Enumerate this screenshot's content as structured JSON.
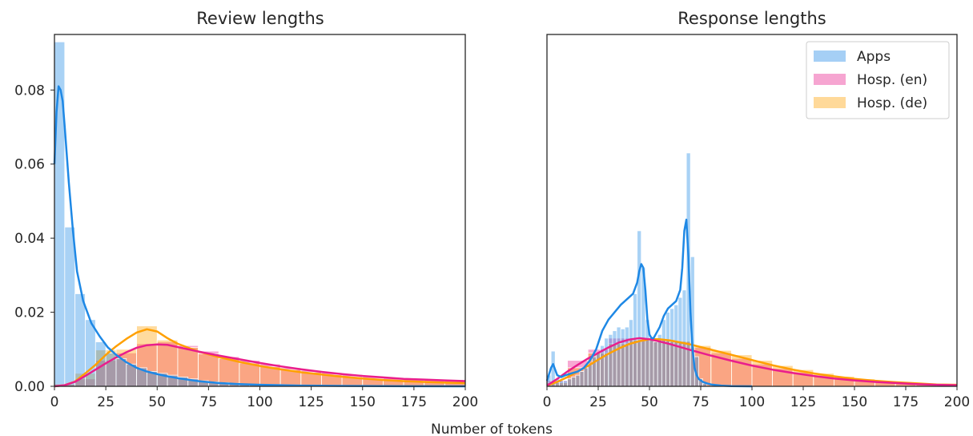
{
  "colors": {
    "apps": "#1e88e5",
    "hosp_en": "#e91e8c",
    "hosp_de": "#ffa000",
    "frame": "#262626"
  },
  "shared": {
    "xlabel": "Number of tokens"
  },
  "chart_data": [
    {
      "type": "histogram",
      "title": "Review lengths",
      "xlim": [
        0,
        200
      ],
      "ylim": [
        0,
        0.095
      ],
      "xticks": [
        0,
        25,
        50,
        75,
        100,
        125,
        150,
        175,
        200
      ],
      "yticks": [
        0.0,
        0.02,
        0.04,
        0.06,
        0.08
      ],
      "yticklabels": [
        "0.00",
        "0.02",
        "0.04",
        "0.06",
        "0.08"
      ],
      "grid": false,
      "series": [
        {
          "key": "apps",
          "bins": {
            "edges": [
              0,
              5,
              10,
              15,
              20,
              25,
              30,
              35,
              40,
              45,
              50,
              55,
              60,
              65,
              70,
              75,
              80,
              85,
              90,
              95,
              100
            ],
            "density": [
              0.093,
              0.043,
              0.025,
              0.018,
              0.012,
              0.009,
              0.0075,
              0.006,
              0.005,
              0.004,
              0.0035,
              0.003,
              0.0025,
              0.002,
              0.0015,
              0.0012,
              0.001,
              0.0008,
              0.0006,
              0.0004
            ]
          },
          "kde": {
            "x": [
              0,
              1,
              2,
              3,
              4,
              5,
              7,
              9,
              11,
              14,
              18,
              22,
              26,
              30,
              35,
              40,
              45,
              50,
              55,
              60,
              65,
              70,
              80,
              90,
              100,
              110,
              120,
              140,
              160,
              180,
              200
            ],
            "y": [
              0.06,
              0.074,
              0.081,
              0.08,
              0.077,
              0.07,
              0.055,
              0.042,
              0.031,
              0.023,
              0.017,
              0.0135,
              0.0105,
              0.0085,
              0.0065,
              0.005,
              0.004,
              0.0033,
              0.0027,
              0.0022,
              0.0018,
              0.0014,
              0.0009,
              0.0006,
              0.0004,
              0.0003,
              0.0002,
              0.0001,
              5e-05,
              2e-05,
              0
            ]
          }
        },
        {
          "key": "hosp_en",
          "bins": {
            "edges": [
              0,
              10,
              20,
              30,
              40,
              50,
              60,
              70,
              80,
              90,
              100,
              110,
              120,
              130,
              140,
              150,
              160,
              170,
              180,
              190,
              200
            ],
            "density": [
              0.0005,
              0.002,
              0.007,
              0.009,
              0.0115,
              0.012,
              0.011,
              0.0095,
              0.008,
              0.007,
              0.006,
              0.005,
              0.0043,
              0.0037,
              0.0032,
              0.0027,
              0.0023,
              0.002,
              0.0017,
              0.0015
            ]
          },
          "kde": {
            "x": [
              0,
              5,
              10,
              15,
              20,
              25,
              30,
              35,
              40,
              45,
              50,
              55,
              60,
              70,
              80,
              90,
              100,
              110,
              120,
              130,
              140,
              150,
              160,
              170,
              180,
              190,
              200
            ],
            "y": [
              0,
              0.0003,
              0.0012,
              0.0028,
              0.0045,
              0.0062,
              0.0078,
              0.0092,
              0.0104,
              0.0111,
              0.0113,
              0.0112,
              0.0106,
              0.0094,
              0.0083,
              0.0073,
              0.0063,
              0.0054,
              0.0046,
              0.0039,
              0.0033,
              0.0028,
              0.0024,
              0.002,
              0.0018,
              0.0016,
              0.0014
            ]
          }
        },
        {
          "key": "hosp_de",
          "bins": {
            "edges": [
              0,
              10,
              20,
              30,
              40,
              50,
              60,
              70,
              80,
              90,
              100,
              110,
              120,
              130,
              140,
              150,
              160,
              170,
              180,
              190,
              200
            ],
            "density": [
              0.0006,
              0.0035,
              0.0098,
              0.01,
              0.0163,
              0.0125,
              0.0105,
              0.0088,
              0.0075,
              0.0063,
              0.0053,
              0.0045,
              0.0038,
              0.0031,
              0.0026,
              0.0021,
              0.0017,
              0.0014,
              0.0012,
              0.001
            ]
          },
          "kde": {
            "x": [
              0,
              5,
              10,
              15,
              20,
              25,
              30,
              35,
              40,
              45,
              50,
              55,
              60,
              70,
              80,
              90,
              100,
              110,
              120,
              130,
              140,
              150,
              160,
              170,
              180,
              190,
              200
            ],
            "y": [
              0,
              0.0003,
              0.0013,
              0.0035,
              0.0058,
              0.0085,
              0.0108,
              0.0128,
              0.0145,
              0.0154,
              0.0148,
              0.013,
              0.0115,
              0.0094,
              0.0079,
              0.0066,
              0.0055,
              0.0046,
              0.0038,
              0.0032,
              0.0026,
              0.0021,
              0.0017,
              0.0014,
              0.0012,
              0.001,
              0.0009
            ]
          }
        }
      ]
    },
    {
      "type": "histogram",
      "title": "Response lengths",
      "xlim": [
        0,
        200
      ],
      "ylim": [
        0,
        0.095
      ],
      "xticks": [
        0,
        25,
        50,
        75,
        100,
        125,
        150,
        175,
        200
      ],
      "yticks": [],
      "grid": false,
      "legend": {
        "position": "top-right",
        "entries": [
          "Apps",
          "Hosp. (en)",
          "Hosp. (de)"
        ]
      },
      "series": [
        {
          "key": "apps",
          "bins": {
            "edges": [
              0,
              2,
              4,
              6,
              8,
              10,
              12,
              14,
              16,
              18,
              20,
              22,
              24,
              26,
              28,
              30,
              32,
              34,
              36,
              38,
              40,
              42,
              44,
              46,
              48,
              50,
              52,
              54,
              56,
              58,
              60,
              62,
              64,
              66,
              68,
              70,
              72,
              74,
              76,
              78
            ],
            "density": [
              0.003,
              0.0095,
              0.002,
              0.0015,
              0.0015,
              0.002,
              0.0025,
              0.003,
              0.004,
              0.005,
              0.006,
              0.008,
              0.009,
              0.011,
              0.013,
              0.014,
              0.015,
              0.016,
              0.0155,
              0.016,
              0.018,
              0.025,
              0.042,
              0.032,
              0.018,
              0.013,
              0.012,
              0.014,
              0.018,
              0.02,
              0.021,
              0.022,
              0.024,
              0.026,
              0.063,
              0.035,
              0.008,
              0.002,
              0.0008,
              0.0003
            ]
          },
          "kde": {
            "x": [
              0,
              2,
              3,
              5,
              7,
              9,
              12,
              15,
              18,
              21,
              24,
              27,
              30,
              33,
              36,
              38,
              40,
              42,
              44,
              45,
              46,
              47,
              48,
              49,
              50,
              51,
              52,
              53,
              55,
              57,
              59,
              61,
              63,
              65,
              66,
              67,
              68,
              69,
              70,
              71,
              72,
              73,
              74,
              76,
              78,
              80,
              85,
              90,
              100
            ],
            "y": [
              0.0015,
              0.005,
              0.006,
              0.003,
              0.0025,
              0.003,
              0.0035,
              0.004,
              0.005,
              0.007,
              0.01,
              0.015,
              0.018,
              0.02,
              0.022,
              0.023,
              0.024,
              0.025,
              0.028,
              0.031,
              0.033,
              0.032,
              0.026,
              0.018,
              0.014,
              0.013,
              0.013,
              0.014,
              0.016,
              0.019,
              0.021,
              0.022,
              0.023,
              0.026,
              0.032,
              0.042,
              0.045,
              0.035,
              0.02,
              0.01,
              0.005,
              0.003,
              0.002,
              0.0012,
              0.0008,
              0.0005,
              0.0002,
              5e-05,
              0
            ]
          }
        },
        {
          "key": "hosp_en",
          "bins": {
            "edges": [
              0,
              10,
              20,
              30,
              40,
              50,
              60,
              70,
              80,
              90,
              100,
              110,
              120,
              130,
              140,
              150,
              160,
              170,
              180,
              190,
              200
            ],
            "density": [
              0.0015,
              0.007,
              0.01,
              0.013,
              0.0125,
              0.0125,
              0.012,
              0.0105,
              0.009,
              0.0075,
              0.006,
              0.0048,
              0.0038,
              0.003,
              0.0023,
              0.0018,
              0.0014,
              0.001,
              0.0008,
              0.0006
            ]
          },
          "kde": {
            "x": [
              0,
              5,
              10,
              15,
              20,
              25,
              30,
              35,
              40,
              45,
              50,
              55,
              60,
              70,
              80,
              90,
              100,
              110,
              120,
              130,
              140,
              150,
              160,
              170,
              180,
              190,
              200
            ],
            "y": [
              0.0002,
              0.002,
              0.004,
              0.0058,
              0.0075,
              0.009,
              0.0105,
              0.0118,
              0.0126,
              0.013,
              0.0127,
              0.0121,
              0.0114,
              0.0098,
              0.0083,
              0.0069,
              0.0056,
              0.0045,
              0.0036,
              0.0028,
              0.0021,
              0.0016,
              0.0012,
              0.0009,
              0.0006,
              0.0004,
              0.0003
            ]
          }
        },
        {
          "key": "hosp_de",
          "bins": {
            "edges": [
              0,
              10,
              20,
              30,
              40,
              50,
              60,
              70,
              80,
              90,
              100,
              110,
              120,
              130,
              140,
              150,
              160,
              170,
              180,
              190,
              200
            ],
            "density": [
              0.001,
              0.005,
              0.009,
              0.0115,
              0.0125,
              0.0125,
              0.0122,
              0.011,
              0.0097,
              0.0085,
              0.007,
              0.0056,
              0.0045,
              0.0035,
              0.0027,
              0.002,
              0.0015,
              0.0011,
              0.0008,
              0.0006
            ]
          },
          "kde": {
            "x": [
              0,
              5,
              10,
              15,
              20,
              25,
              30,
              35,
              40,
              45,
              50,
              55,
              60,
              70,
              80,
              90,
              100,
              110,
              120,
              130,
              140,
              150,
              160,
              170,
              180,
              190,
              200
            ],
            "y": [
              0.0002,
              0.0012,
              0.0025,
              0.004,
              0.0055,
              0.0072,
              0.0088,
              0.0102,
              0.0114,
              0.0122,
              0.0127,
              0.0127,
              0.0124,
              0.0113,
              0.0099,
              0.0085,
              0.0071,
              0.0057,
              0.0045,
              0.0035,
              0.0027,
              0.002,
              0.0015,
              0.0011,
              0.0008,
              0.0005,
              0.0004
            ]
          }
        }
      ]
    }
  ]
}
